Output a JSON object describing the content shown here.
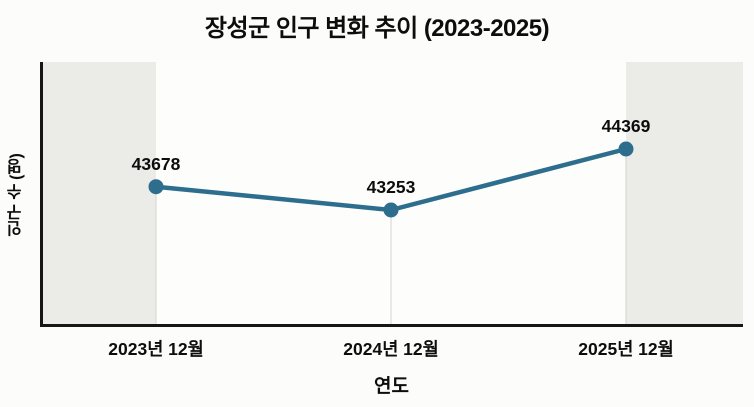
{
  "title": "장성군 인구 변화 추이 (2023-2025)",
  "colors": {
    "line": "#2d6e8e",
    "marker": "#2d6e8e",
    "band": "#ebebe8",
    "axis": "#161616",
    "stem": "#d9d9d4",
    "background": "#fcfcfa"
  },
  "chart_data": {
    "type": "line",
    "title": "장성군 인구 변화 추이 (2023-2025)",
    "categories": [
      "2023년 12월",
      "2024년 12월",
      "2025년 12월"
    ],
    "values": [
      43678,
      43253,
      44369
    ],
    "point_labels": [
      "43678",
      "43253",
      "44369"
    ],
    "xlabel": "연도",
    "ylabel": "인구 수 (명)",
    "ylim": [
      41167,
      45960
    ],
    "grid": "off",
    "legend": "none",
    "highlight_bands": [
      "first-category-to-left-spine",
      "last-category-to-right-edge"
    ]
  }
}
